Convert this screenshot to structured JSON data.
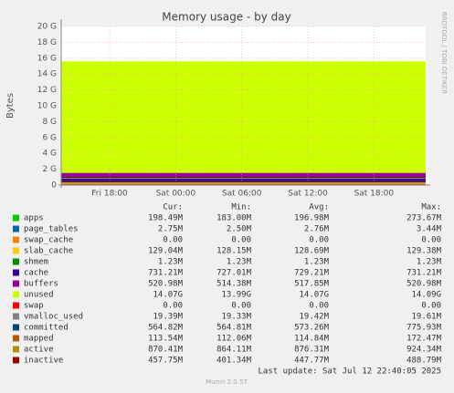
{
  "chart_data": {
    "type": "area",
    "title": "Memory usage - by day",
    "y_label": "Bytes",
    "watermark": "RRDTOOL / TOBI OETIKER",
    "x": [
      13.6,
      46.7
    ],
    "xlim": [
      13.6,
      46.7
    ],
    "xticks": [
      {
        "value": 18,
        "label": "Fri 18:00"
      },
      {
        "value": 24,
        "label": "Sat 00:00"
      },
      {
        "value": 30,
        "label": "Sat 06:00"
      },
      {
        "value": 36,
        "label": "Sat 12:00"
      },
      {
        "value": 42,
        "label": "Sat 18:00"
      }
    ],
    "ylim": [
      0,
      20
    ],
    "yticks": [
      0,
      {
        "value": 2,
        "label": "2 G"
      },
      {
        "value": 4,
        "label": "4 G"
      },
      {
        "value": 6,
        "label": "6 G"
      },
      {
        "value": 8,
        "label": "8 G"
      },
      {
        "value": 10,
        "label": "10 G"
      },
      {
        "value": 12,
        "label": "12 G"
      },
      {
        "value": 14,
        "label": "14 G"
      },
      {
        "value": 16,
        "label": "16 G"
      },
      {
        "value": 18,
        "label": "18 G"
      },
      {
        "value": 20,
        "label": "20 G"
      }
    ],
    "grid": true,
    "columns": [
      "Cur:",
      "Min:",
      "Avg:",
      "Max:"
    ],
    "series": [
      {
        "name": "apps",
        "color": "#00cc00",
        "style": "area",
        "values": [
          0.19,
          0.19
        ],
        "stats": [
          "198.49M",
          "183.00M",
          "196.98M",
          "273.67M"
        ]
      },
      {
        "name": "page_tables",
        "color": "#0066b3",
        "style": "area",
        "values": [
          0.003,
          0.003
        ],
        "stats": [
          "2.75M",
          "2.50M",
          "2.76M",
          "3.44M"
        ]
      },
      {
        "name": "swap_cache",
        "color": "#ff8000",
        "style": "area",
        "values": [
          0,
          0
        ],
        "stats": [
          "0.00",
          "0.00",
          "0.00",
          "0.00"
        ]
      },
      {
        "name": "slab_cache",
        "color": "#ffcc00",
        "style": "area",
        "values": [
          0.126,
          0.126
        ],
        "stats": [
          "129.04M",
          "128.15M",
          "128.69M",
          "129.38M"
        ]
      },
      {
        "name": "shmem",
        "color": "#008f00",
        "style": "area",
        "values": [
          0.001,
          0.001
        ],
        "stats": [
          "1.23M",
          "1.23M",
          "1.23M",
          "1.23M"
        ]
      },
      {
        "name": "cache",
        "color": "#330099",
        "style": "area",
        "values": [
          0.71,
          0.71
        ],
        "stats": [
          "731.21M",
          "727.01M",
          "729.21M",
          "731.21M"
        ]
      },
      {
        "name": "buffers",
        "color": "#990099",
        "style": "area",
        "values": [
          0.51,
          0.51
        ],
        "stats": [
          "520.98M",
          "514.38M",
          "517.85M",
          "520.98M"
        ]
      },
      {
        "name": "unused",
        "color": "#ccff00",
        "style": "area",
        "values": [
          14.07,
          14.07
        ],
        "stats": [
          "14.07G",
          "13.99G",
          "14.07G",
          "14.09G"
        ]
      },
      {
        "name": "swap",
        "color": "#ff0000",
        "style": "area",
        "values": [
          0,
          0
        ],
        "stats": [
          "0.00",
          "0.00",
          "0.00",
          "0.00"
        ]
      },
      {
        "name": "vmalloc_used",
        "color": "#808080",
        "style": "line",
        "values": [
          0.019,
          0.019
        ],
        "stats": [
          "19.39M",
          "19.33M",
          "19.42M",
          "19.61M"
        ]
      },
      {
        "name": "committed",
        "color": "#00487d",
        "style": "line",
        "values": [
          0.56,
          0.56
        ],
        "stats": [
          "564.82M",
          "564.81M",
          "573.26M",
          "775.93M"
        ]
      },
      {
        "name": "mapped",
        "color": "#b35a00",
        "style": "line",
        "values": [
          0.11,
          0.11
        ],
        "stats": [
          "113.54M",
          "112.06M",
          "114.84M",
          "172.47M"
        ]
      },
      {
        "name": "active",
        "color": "#b38f00",
        "style": "line",
        "values": [
          0.86,
          0.86
        ],
        "stats": [
          "870.41M",
          "864.11M",
          "876.31M",
          "924.34M"
        ]
      },
      {
        "name": "inactive",
        "color": "#990000",
        "style": "line",
        "values": [
          0.44,
          0.44
        ],
        "stats": [
          "457.75M",
          "401.34M",
          "447.77M",
          "488.79M"
        ]
      }
    ],
    "last_update": "Last update: Sat Jul 12 22:40:05 2025",
    "version": "Munin 2.0.57"
  }
}
